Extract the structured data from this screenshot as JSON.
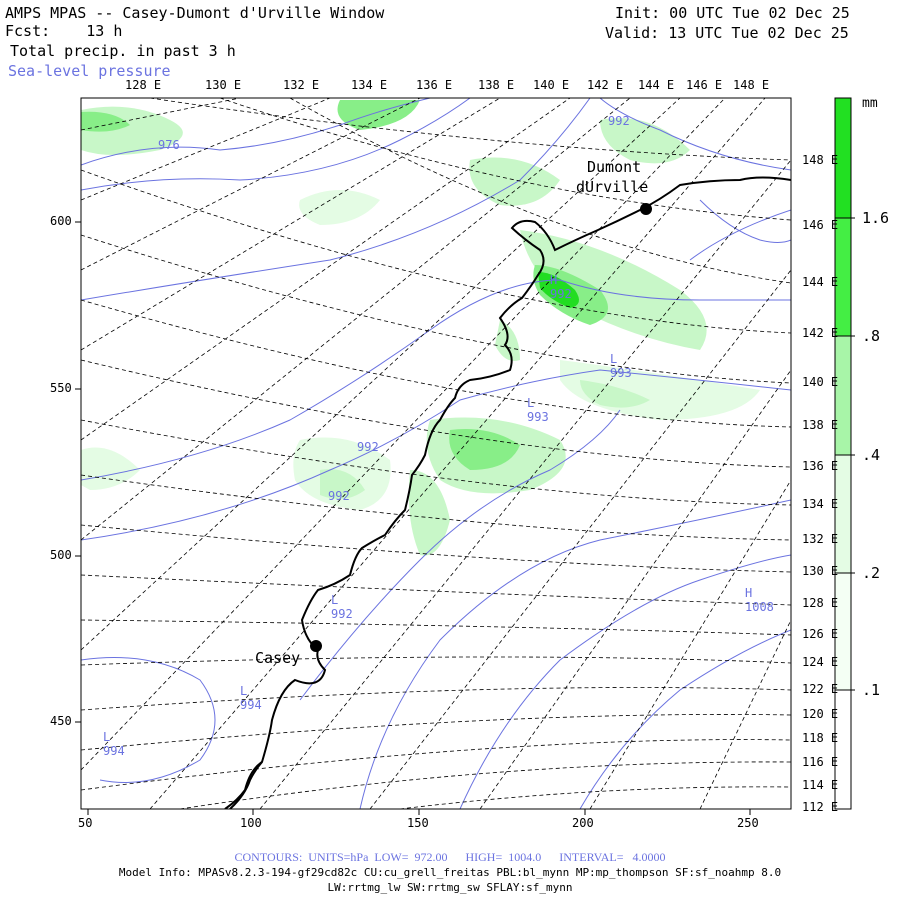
{
  "header": {
    "title": "AMPS MPAS -- Casey-Dumont d'Urville Window",
    "forecast": "Fcst:    13 h",
    "field": "Total precip. in past 3 h",
    "overlay": "Sea-level pressure",
    "init": "Init: 00 UTC Tue 02 Dec 25",
    "valid": "Valid: 13 UTC Tue 02 Dec 25"
  },
  "top_lon_labels": [
    "128 E",
    "130 E",
    "132 E",
    "134 E",
    "136 E",
    "138 E",
    "140 E",
    "142 E",
    "144 E",
    "146 E",
    "148 E"
  ],
  "right_lon_labels": [
    "148 E",
    "146 E",
    "144 E",
    "142 E",
    "140 E",
    "138 E",
    "136 E",
    "134 E",
    "132 E",
    "130 E",
    "128 E",
    "126 E",
    "124 E",
    "122 E",
    "120 E",
    "118 E",
    "116 E",
    "114 E",
    "112 E"
  ],
  "x_axis_labels": [
    "50",
    "100",
    "150",
    "200",
    "250"
  ],
  "y_axis_labels": [
    "600",
    "550",
    "500",
    "450"
  ],
  "stations": [
    {
      "name_line1": "Dumont",
      "name_line2": "dUrville"
    },
    {
      "name_line1": "Casey",
      "name_line2": ""
    }
  ],
  "pressure_labels": [
    {
      "text": "976"
    },
    {
      "text": "992"
    },
    {
      "text": "992"
    },
    {
      "text": "992"
    },
    {
      "text": "H 992"
    },
    {
      "text": "L 993"
    },
    {
      "text": "L 993"
    },
    {
      "text": "L 992"
    },
    {
      "text": "L 994"
    },
    {
      "text": "L 994"
    },
    {
      "text": "H 1008"
    }
  ],
  "colorbar": {
    "unit": "mm",
    "labels": [
      "1.6",
      ".8",
      ".4",
      ".2",
      ".1"
    ],
    "colors": [
      "#22e022",
      "#44ee44",
      "#a8f5a8",
      "#e4fce4",
      "#ffffff"
    ]
  },
  "footer": {
    "contours": "CONTOURS:  UNITS=hPa  LOW=  972.00      HIGH=  1004.0      INTERVAL=   4.0000",
    "model_info": "Model Info: MPASv8.2.3-194-gf29cd82c CU:cu_grell_freitas PBL:bl_mynn MP:mp_thompson SF:sf_noahmp 8.0",
    "physics": "LW:rrtmg_lw SW:rrtmg_sw SFLAY:sf_mynn"
  },
  "colors": {
    "contour": "#6b73e0",
    "precip_light": "#c8f7c8",
    "precip_med": "#88ee88",
    "precip_heavy": "#22dd22"
  }
}
